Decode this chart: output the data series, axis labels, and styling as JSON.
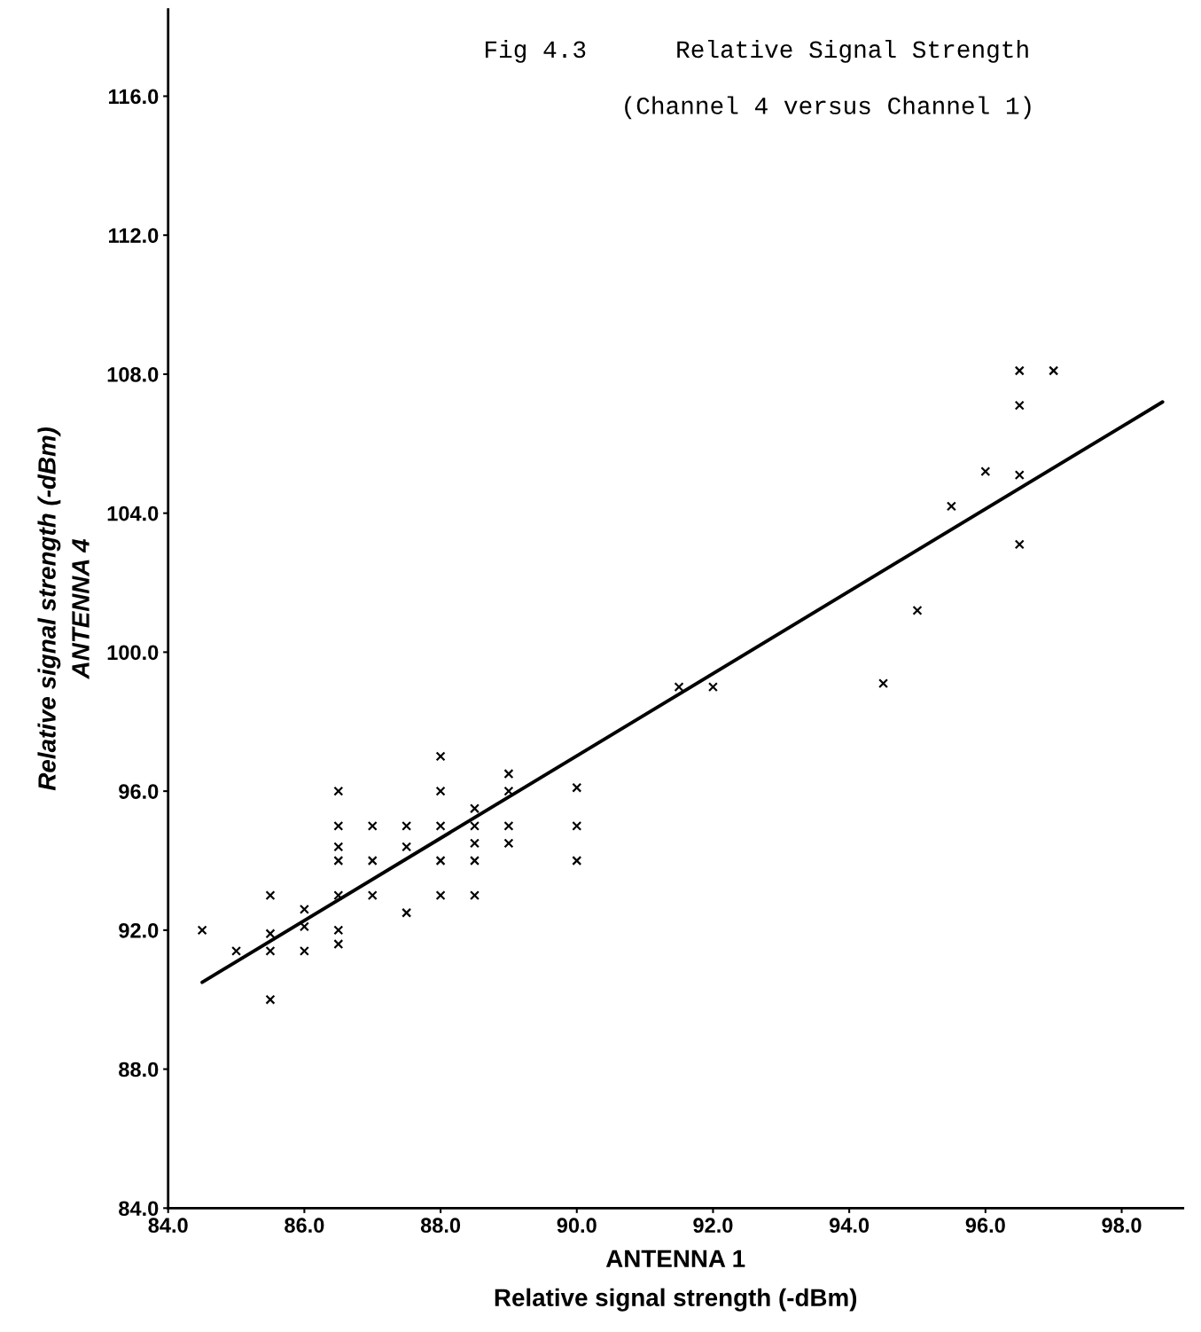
{
  "chart_data": {
    "type": "scatter",
    "title": "Fig 4.3      Relative Signal Strength",
    "subtitle": "(Channel 4 versus Channel 1)",
    "xlabel": "ANTENNA 1\nRelative signal strength (-dBm)",
    "ylabel": "Relative signal strength (-dBm)\nANTENNA 4",
    "marker": "cross",
    "grid": false,
    "xlim": [
      84,
      98.9
    ],
    "ylim": [
      84,
      118.5
    ],
    "xticks": [
      {
        "value": 84,
        "label": "84.0"
      },
      {
        "value": 86,
        "label": "86.0"
      },
      {
        "value": 88,
        "label": "88.0"
      },
      {
        "value": 90,
        "label": "90.0"
      },
      {
        "value": 92,
        "label": "92.0"
      },
      {
        "value": 94,
        "label": "94.0"
      },
      {
        "value": 96,
        "label": "96.0"
      },
      {
        "value": 98,
        "label": "98.0"
      }
    ],
    "yticks": [
      {
        "value": 84,
        "label": "84.0"
      },
      {
        "value": 88,
        "label": "88.0"
      },
      {
        "value": 92,
        "label": "92.0"
      },
      {
        "value": 96,
        "label": "96.0"
      },
      {
        "value": 100,
        "label": "100.0"
      },
      {
        "value": 104,
        "label": "104.0"
      },
      {
        "value": 108,
        "label": "108.0"
      },
      {
        "value": 112,
        "label": "112.0"
      },
      {
        "value": 116,
        "label": "116.0"
      }
    ],
    "series": [
      {
        "color": "#000000",
        "x": [
          84.5,
          85.0,
          85.5,
          85.5,
          85.5,
          85.5,
          86.0,
          86.0,
          86.0,
          86.5,
          86.5,
          86.5,
          86.5,
          86.5,
          86.5,
          86.5,
          87.0,
          87.0,
          87.0,
          87.5,
          87.5,
          87.5,
          88.0,
          88.0,
          88.0,
          88.0,
          88.0,
          88.5,
          88.5,
          88.5,
          88.5,
          88.5,
          89.0,
          89.0,
          89.0,
          89.0,
          90.0,
          90.0,
          90.0,
          91.5,
          92.0,
          94.5,
          95.0,
          95.5,
          96.0,
          96.5,
          96.5,
          96.5,
          96.5,
          97.0
        ],
        "values": [
          92.0,
          91.4,
          93.0,
          91.9,
          91.4,
          90.0,
          92.6,
          92.1,
          91.4,
          96.0,
          95.0,
          94.4,
          94.0,
          93.0,
          92.0,
          91.6,
          95.0,
          94.0,
          93.0,
          95.0,
          94.4,
          92.5,
          97.0,
          96.0,
          95.0,
          94.0,
          93.0,
          95.5,
          95.0,
          94.5,
          94.0,
          93.0,
          96.5,
          96.0,
          95.0,
          94.5,
          96.1,
          95.0,
          94.0,
          99.0,
          99.0,
          99.1,
          101.2,
          104.2,
          105.2,
          108.1,
          107.1,
          105.1,
          103.1,
          108.1
        ]
      },
      {
        "type": "line",
        "color": "#000000",
        "line_style": "solid",
        "marker": "none",
        "x": [
          84.5,
          98.6
        ],
        "values": [
          90.5,
          107.2
        ]
      }
    ]
  }
}
